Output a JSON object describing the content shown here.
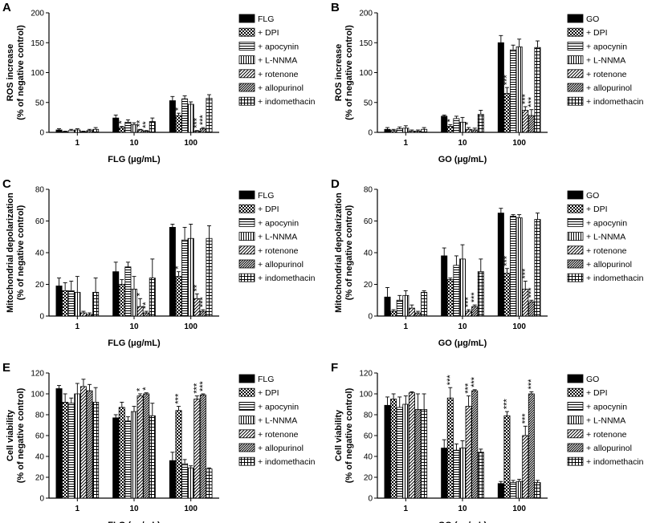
{
  "figure": {
    "series_names": {
      "DPI": "+ DPI",
      "apocynin": "+ apocynin",
      "LNNMA": "+ L-NNMA",
      "rotenone": "+ rotenone",
      "allopurinol": "+ allopurinol",
      "indomethacin": "+ indomethacin"
    }
  },
  "chart_data": [
    {
      "panel_label": "A",
      "type": "bar",
      "title": "",
      "ylabel": [
        "ROS increase",
        "(% of negative control)"
      ],
      "xlabel": "FLG (μg/mL)",
      "ylim": [
        0,
        200
      ],
      "yticks": [
        0,
        50,
        100,
        150,
        200
      ],
      "categories": [
        "1",
        "10",
        "100"
      ],
      "legend": [
        "FLG",
        "+ DPI",
        "+ apocynin",
        "+ L-NNMA",
        "+ rotenone",
        "+ allopurinol",
        "+ indomethacin"
      ],
      "series": [
        {
          "name": "FLG",
          "values": [
            4,
            24,
            53
          ],
          "errors": [
            2,
            5,
            7
          ]
        },
        {
          "name": "+ DPI",
          "values": [
            1,
            8,
            28
          ],
          "errors": [
            1,
            2,
            4
          ]
        },
        {
          "name": "+ apocynin",
          "values": [
            3,
            17,
            56
          ],
          "errors": [
            2,
            4,
            5
          ]
        },
        {
          "name": "+ L-NNMA",
          "values": [
            4,
            13,
            47
          ],
          "errors": [
            2,
            3,
            4
          ]
        },
        {
          "name": "+ rotenone",
          "values": [
            1,
            4,
            2
          ],
          "errors": [
            1,
            1,
            1
          ]
        },
        {
          "name": "+ allopurinol",
          "values": [
            3,
            2,
            6
          ],
          "errors": [
            2,
            1,
            2
          ]
        },
        {
          "name": "+ indomethacin",
          "values": [
            5,
            18,
            57
          ],
          "errors": [
            3,
            6,
            6
          ]
        }
      ],
      "annotations": [
        {
          "text": "*",
          "category": 1,
          "series": 1
        },
        {
          "text": "**",
          "category": 1,
          "series": 4
        },
        {
          "text": "**",
          "category": 1,
          "series": 5
        },
        {
          "text": "*",
          "category": 2,
          "series": 1
        },
        {
          "text": "***",
          "category": 2,
          "series": 4
        },
        {
          "text": "***",
          "category": 2,
          "series": 5
        }
      ]
    },
    {
      "panel_label": "B",
      "type": "bar",
      "title": "",
      "ylabel": [
        "ROS increase",
        "(% of negative control)"
      ],
      "xlabel": "GO (μg/mL)",
      "ylim": [
        0,
        200
      ],
      "yticks": [
        0,
        50,
        100,
        150,
        200
      ],
      "categories": [
        "1",
        "10",
        "100"
      ],
      "legend": [
        "GO",
        "+ DPI",
        "+ apocynin",
        "+ L-NNMA",
        "+ rotenone",
        "+ allopurinol",
        "+ indomethacin"
      ],
      "series": [
        {
          "name": "GO",
          "values": [
            5,
            27,
            150
          ],
          "errors": [
            3,
            2,
            12
          ]
        },
        {
          "name": "+ DPI",
          "values": [
            3,
            10,
            65
          ],
          "errors": [
            2,
            3,
            10
          ]
        },
        {
          "name": "+ apocynin",
          "values": [
            6,
            23,
            138
          ],
          "errors": [
            3,
            4,
            8
          ]
        },
        {
          "name": "+ L-NNMA",
          "values": [
            7,
            17,
            143
          ],
          "errors": [
            4,
            8,
            13
          ]
        },
        {
          "name": "+ rotenone",
          "values": [
            2,
            5,
            37
          ],
          "errors": [
            2,
            3,
            6
          ]
        },
        {
          "name": "+ allopurinol",
          "values": [
            2,
            4,
            28
          ],
          "errors": [
            2,
            3,
            10
          ]
        },
        {
          "name": "+ indomethacin",
          "values": [
            5,
            30,
            142
          ],
          "errors": [
            3,
            7,
            11
          ]
        }
      ],
      "annotations": [
        {
          "text": "*",
          "category": 1,
          "series": 1
        },
        {
          "text": "*",
          "category": 1,
          "series": 4
        },
        {
          "text": "***",
          "category": 2,
          "series": 1
        },
        {
          "text": "***",
          "category": 2,
          "series": 4
        },
        {
          "text": "***",
          "category": 2,
          "series": 5
        }
      ]
    },
    {
      "panel_label": "C",
      "type": "bar",
      "title": "",
      "ylabel": [
        "Mitochondrial depolarization",
        "(% of negative control)"
      ],
      "xlabel": "FLG (μg/mL)",
      "ylim": [
        0,
        80
      ],
      "yticks": [
        0,
        20,
        40,
        60,
        80
      ],
      "categories": [
        "1",
        "10",
        "100"
      ],
      "legend": [
        "FLG",
        "+ DPI",
        "+ apocynin",
        "+ L-NNMA",
        "+ rotenone",
        "+ allopurinol",
        "+ indomethacin"
      ],
      "series": [
        {
          "name": "FLG",
          "values": [
            19,
            28,
            56
          ],
          "errors": [
            5,
            6,
            2
          ]
        },
        {
          "name": "+ DPI",
          "values": [
            16,
            20,
            25
          ],
          "errors": [
            5,
            3,
            3
          ]
        },
        {
          "name": "+ apocynin",
          "values": [
            16,
            31,
            48
          ],
          "errors": [
            6,
            3,
            8
          ]
        },
        {
          "name": "+ L-NNMA",
          "values": [
            15,
            17,
            49
          ],
          "errors": [
            10,
            8,
            9
          ]
        },
        {
          "name": "+ rotenone",
          "values": [
            2,
            6,
            11
          ],
          "errors": [
            1,
            5,
            3
          ]
        },
        {
          "name": "+ allopurinol",
          "values": [
            1,
            2,
            3
          ],
          "errors": [
            1,
            1,
            1
          ]
        },
        {
          "name": "+ indomethacin",
          "values": [
            15,
            24,
            49
          ],
          "errors": [
            9,
            12,
            8
          ]
        }
      ],
      "annotations": [
        {
          "text": "*",
          "category": 1,
          "series": 4
        },
        {
          "text": "**",
          "category": 1,
          "series": 5
        },
        {
          "text": "*",
          "category": 2,
          "series": 1
        },
        {
          "text": "**",
          "category": 2,
          "series": 4
        },
        {
          "text": "***",
          "category": 2,
          "series": 5
        }
      ]
    },
    {
      "panel_label": "D",
      "type": "bar",
      "title": "",
      "ylabel": [
        "Mitochondrial depolarization",
        "(% of negative control)"
      ],
      "xlabel": "GO (μg/mL)",
      "ylim": [
        0,
        80
      ],
      "yticks": [
        0,
        20,
        40,
        60,
        80
      ],
      "categories": [
        "1",
        "10",
        "100"
      ],
      "legend": [
        "GO",
        "+ DPI",
        "+ apocynin",
        "+ L-NNMA",
        "+ rotenone",
        "+ allopurinol",
        "+ indomethacin"
      ],
      "series": [
        {
          "name": "GO",
          "values": [
            12,
            38,
            65
          ],
          "errors": [
            6,
            5,
            3
          ]
        },
        {
          "name": "+ DPI",
          "values": [
            3,
            23,
            27
          ],
          "errors": [
            1,
            1,
            3
          ]
        },
        {
          "name": "+ apocynin",
          "values": [
            10,
            32,
            63
          ],
          "errors": [
            3,
            6,
            1
          ]
        },
        {
          "name": "+ L-NNMA",
          "values": [
            13,
            36,
            62
          ],
          "errors": [
            3,
            9,
            2
          ]
        },
        {
          "name": "+ rotenone",
          "values": [
            5,
            3,
            17
          ],
          "errors": [
            2,
            1,
            5
          ]
        },
        {
          "name": "+ allopurinol",
          "values": [
            2,
            6,
            9
          ],
          "errors": [
            1,
            1,
            1
          ]
        },
        {
          "name": "+ indomethacin",
          "values": [
            15,
            28,
            61
          ],
          "errors": [
            1,
            8,
            4
          ]
        }
      ],
      "annotations": [
        {
          "text": "***",
          "category": 1,
          "series": 4
        },
        {
          "text": "***",
          "category": 1,
          "series": 5
        },
        {
          "text": "***",
          "category": 2,
          "series": 1
        },
        {
          "text": "***",
          "category": 2,
          "series": 4
        },
        {
          "text": "***",
          "category": 2,
          "series": 5
        }
      ]
    },
    {
      "panel_label": "E",
      "type": "bar",
      "title": "",
      "ylabel": [
        "Cell viability",
        "(% of negative control)"
      ],
      "xlabel": "FLG (μg/mL)",
      "ylim": [
        0,
        120
      ],
      "yticks": [
        0,
        20,
        40,
        60,
        80,
        100,
        120
      ],
      "categories": [
        "1",
        "10",
        "100"
      ],
      "legend": [
        "FLG",
        "+ DPI",
        "+ apocynin",
        "+ L-NNMA",
        "+ rotenone",
        "+ allopurinol",
        "+ indomethacin"
      ],
      "series": [
        {
          "name": "FLG",
          "values": [
            105,
            77,
            36
          ],
          "errors": [
            3,
            3,
            8
          ]
        },
        {
          "name": "+ DPI",
          "values": [
            92,
            87,
            84
          ],
          "errors": [
            8,
            5,
            4
          ]
        },
        {
          "name": "+ apocynin",
          "values": [
            91,
            74,
            33
          ],
          "errors": [
            5,
            4,
            4
          ]
        },
        {
          "name": "+ L-NNMA",
          "values": [
            100,
            83,
            29
          ],
          "errors": [
            10,
            5,
            2
          ]
        },
        {
          "name": "+ rotenone",
          "values": [
            107,
            98,
            95
          ],
          "errors": [
            7,
            2,
            3
          ]
        },
        {
          "name": "+ allopurinol",
          "values": [
            103,
            100,
            99
          ],
          "errors": [
            6,
            1,
            1
          ]
        },
        {
          "name": "+ indomethacin",
          "values": [
            92,
            79,
            28
          ],
          "errors": [
            14,
            12,
            1
          ]
        }
      ],
      "annotations": [
        {
          "text": "*",
          "category": 1,
          "series": 4
        },
        {
          "text": "*",
          "category": 1,
          "series": 5
        },
        {
          "text": "***",
          "category": 2,
          "series": 1
        },
        {
          "text": "***",
          "category": 2,
          "series": 4
        },
        {
          "text": "***",
          "category": 2,
          "series": 5
        }
      ]
    },
    {
      "panel_label": "F",
      "type": "bar",
      "title": "",
      "ylabel": [
        "Cell viability",
        "(% of negative control)"
      ],
      "xlabel": "GO (μg/mL)",
      "ylim": [
        0,
        120
      ],
      "yticks": [
        0,
        20,
        40,
        60,
        80,
        100,
        120
      ],
      "categories": [
        "1",
        "10",
        "100"
      ],
      "legend": [
        "GO",
        "+ DPI",
        "+ apocynin",
        "+ L-NNMA",
        "+ rotenone",
        "+ allopurinol",
        "+ indomethacin"
      ],
      "series": [
        {
          "name": "GO",
          "values": [
            89,
            48,
            14
          ],
          "errors": [
            8,
            8,
            2
          ]
        },
        {
          "name": "+ DPI",
          "values": [
            95,
            96,
            79
          ],
          "errors": [
            5,
            10,
            4
          ]
        },
        {
          "name": "+ apocynin",
          "values": [
            87,
            46,
            15
          ],
          "errors": [
            10,
            6,
            2
          ]
        },
        {
          "name": "+ L-NNMA",
          "values": [
            90,
            48,
            16
          ],
          "errors": [
            8,
            7,
            2
          ]
        },
        {
          "name": "+ rotenone",
          "values": [
            101,
            88,
            60
          ],
          "errors": [
            1,
            10,
            9
          ]
        },
        {
          "name": "+ allopurinol",
          "values": [
            85,
            103,
            100
          ],
          "errors": [
            15,
            1,
            2
          ]
        },
        {
          "name": "+ indomethacin",
          "values": [
            85,
            44,
            15
          ],
          "errors": [
            15,
            3,
            2
          ]
        }
      ],
      "annotations": [
        {
          "text": "***",
          "category": 1,
          "series": 1
        },
        {
          "text": "***",
          "category": 1,
          "series": 4
        },
        {
          "text": "***",
          "category": 1,
          "series": 5
        },
        {
          "text": "***",
          "category": 2,
          "series": 1
        },
        {
          "text": "***",
          "category": 2,
          "series": 4
        },
        {
          "text": "***",
          "category": 2,
          "series": 5
        }
      ]
    }
  ]
}
